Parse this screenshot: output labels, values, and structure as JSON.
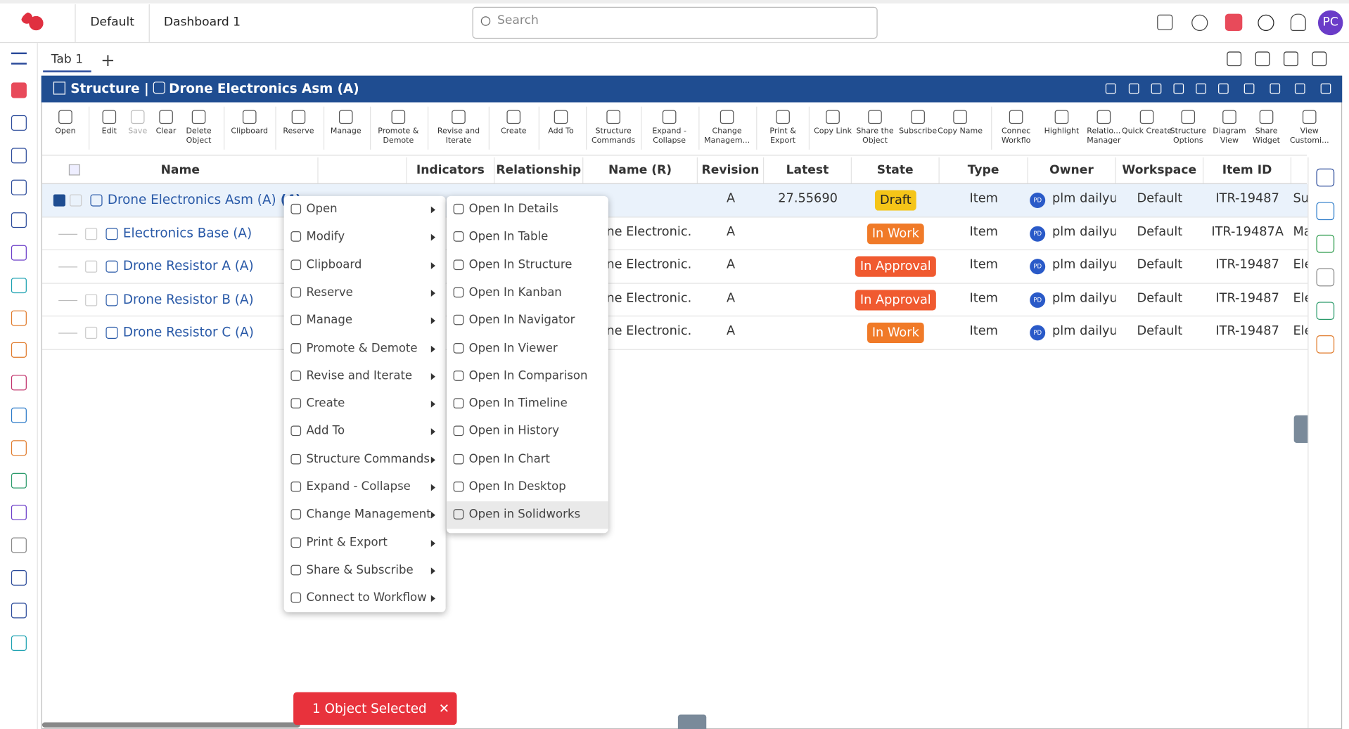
{
  "header": {
    "tabs": [
      "Default",
      "Dashboard 1"
    ],
    "search_placeholder": "Search",
    "avatar": "PC"
  },
  "tab_bar": {
    "tab": "Tab 1"
  },
  "panel": {
    "title": "Structure",
    "object": "Drone Electronics Asm (A)"
  },
  "toolbar": [
    "Open",
    "Edit",
    "Save",
    "Clear",
    "Delete Object",
    "Clipboard",
    "Reserve",
    "Manage",
    "Promote & Demote",
    "Revise and Iterate",
    "Create",
    "Add To",
    "Structure Commands",
    "Expand - Collapse",
    "Change Managem...",
    "Print & Export",
    "Copy Link",
    "Share the Object",
    "Subscribe",
    "Copy Name",
    "Connec Workflo",
    "Highlight",
    "Relatio... Manager",
    "Quick Create",
    "Structure Options",
    "Diagram View",
    "Share Widget",
    "View Customi..."
  ],
  "table": {
    "columns": [
      "Name",
      "Indicators",
      "Relationship ...",
      "Name (R)",
      "Revision",
      "Latest Iteration",
      "State",
      "Type",
      "Owner",
      "Workspace",
      "Item ID"
    ],
    "rows": [
      {
        "name": "Drone Electronics Asm (A)",
        "count": "(4)",
        "name_r": null,
        "revision": "A",
        "iteration": "27.55690",
        "state": "Draft",
        "type": "Item",
        "owner_badge": "PD",
        "owner": "plm dailyus",
        "workspace": "Default",
        "item_id": "ITR-19487",
        "extra": "Su"
      },
      {
        "name": "Electronics Base (A)",
        "count": null,
        "name_r": "ne Electronic...",
        "revision": "A",
        "iteration": null,
        "state": "In Work",
        "type": "Item",
        "owner_badge": "PD",
        "owner": "plm dailyus",
        "workspace": "Default",
        "item_id": "ITR-19487A",
        "extra": "Ma"
      },
      {
        "name": "Drone Resistor A (A)",
        "count": null,
        "name_r": "ne Electronic...",
        "revision": "A",
        "iteration": null,
        "state": "In Approval",
        "type": "Item",
        "owner_badge": "PD",
        "owner": "plm dailyus",
        "workspace": "Default",
        "item_id": "ITR-19487",
        "extra": "Ele"
      },
      {
        "name": "Drone Resistor B (A)",
        "count": null,
        "name_r": "ne Electronic...",
        "revision": "A",
        "iteration": null,
        "state": "In Approval",
        "type": "Item",
        "owner_badge": "PD",
        "owner": "plm dailyus",
        "workspace": "Default",
        "item_id": "ITR-19487",
        "extra": "Ele"
      },
      {
        "name": "Drone Resistor C (A)",
        "count": null,
        "name_r": "ne Electronic...",
        "revision": "A",
        "iteration": null,
        "state": "In Work",
        "type": "Item",
        "owner_badge": "PD",
        "owner": "plm dailyus",
        "workspace": "Default",
        "item_id": "ITR-19487",
        "extra": "Ele"
      }
    ]
  },
  "context_menu": [
    "Open",
    "Modify",
    "Clipboard",
    "Reserve",
    "Manage",
    "Promote & Demote",
    "Revise and Iterate",
    "Create",
    "Add To",
    "Structure Commands",
    "Expand - Collapse",
    "Change Management",
    "Print & Export",
    "Share & Subscribe",
    "Connect to Workflow"
  ],
  "submenu": [
    "Open In Details",
    "Open In Table",
    "Open In Structure",
    "Open In Kanban",
    "Open In Navigator",
    "Open In Viewer",
    "Open In Comparison",
    "Open In Timeline",
    "Open in History",
    "Open In Chart",
    "Open In Desktop",
    "Open in Solidworks"
  ],
  "selection_bar": "1 Object Selected"
}
